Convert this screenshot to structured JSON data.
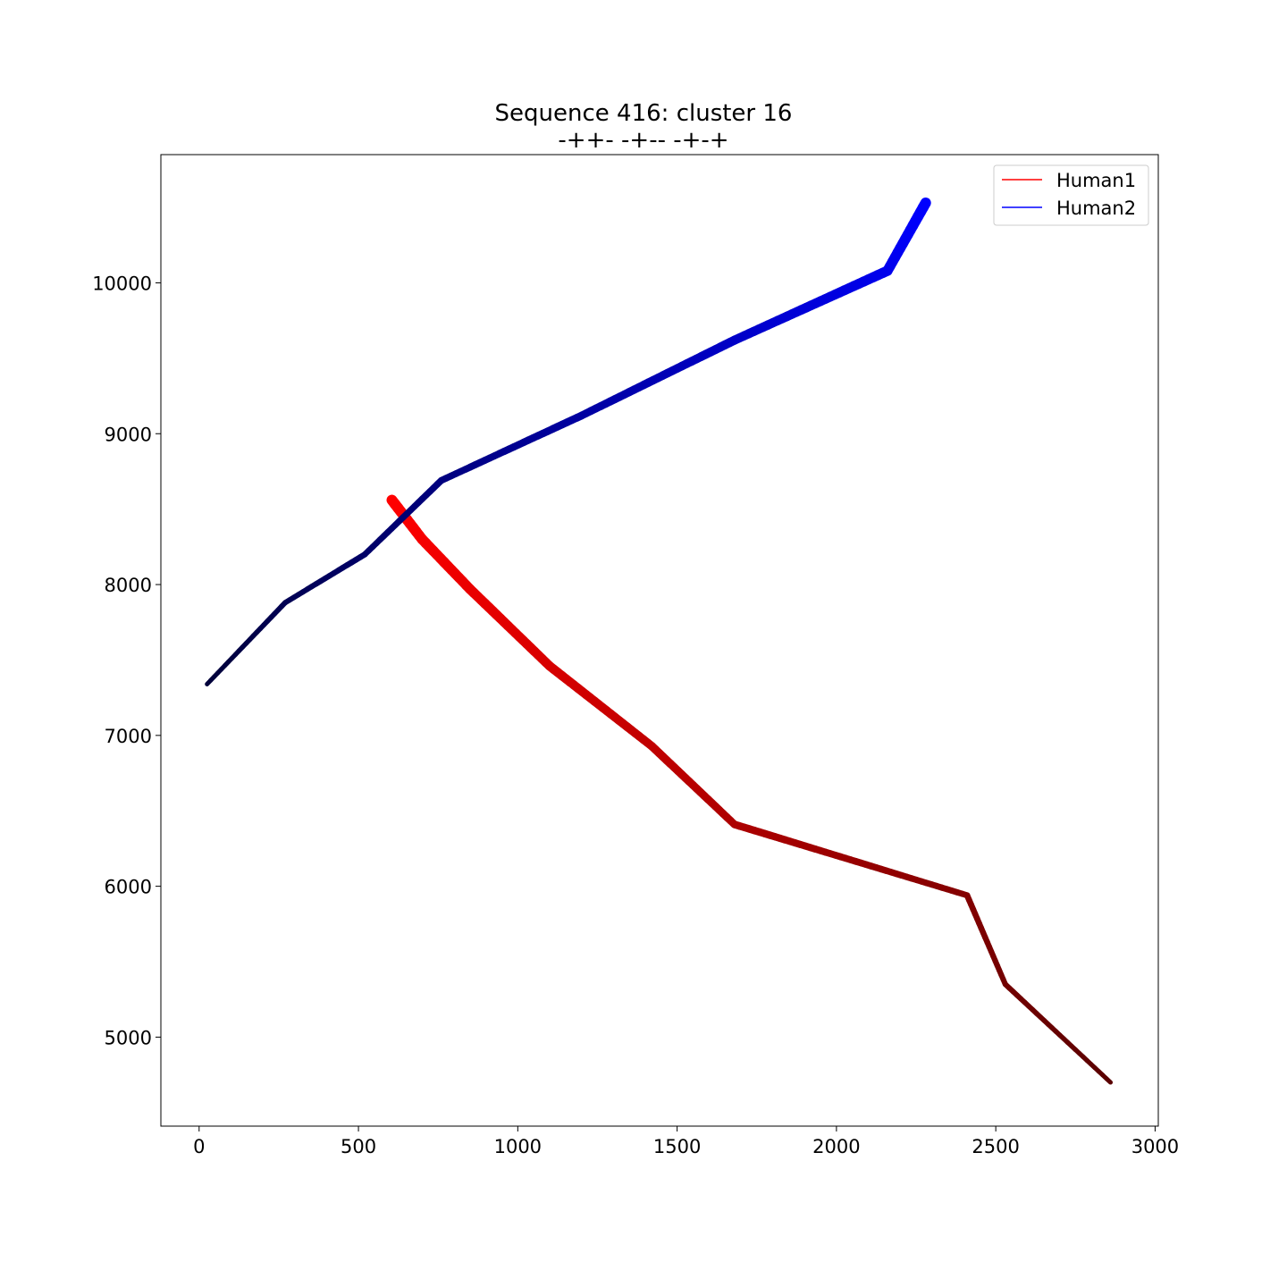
{
  "chart_data": {
    "type": "line",
    "title": "Sequence 416: cluster 16",
    "subtitle": "-++- -+-- -+-+",
    "xlabel": "",
    "ylabel": "",
    "xlim": [
      -120,
      3010
    ],
    "ylim": [
      4410,
      10850
    ],
    "xticks": [
      0,
      500,
      1000,
      1500,
      2000,
      2500,
      3000
    ],
    "xtick_labels": [
      "0",
      "500",
      "1000",
      "1500",
      "2000",
      "2500",
      "3000"
    ],
    "yticks": [
      5000,
      6000,
      7000,
      8000,
      9000,
      10000
    ],
    "ytick_labels": [
      "5000",
      "6000",
      "7000",
      "8000",
      "9000",
      "10000"
    ],
    "grid": false,
    "legend_position": "top-right",
    "series": [
      {
        "name": "Human1",
        "legend_color": "#ff0000",
        "color_start": "#ff0000",
        "color_end": "#5a0000",
        "points": [
          [
            605,
            8560
          ],
          [
            700,
            8300
          ],
          [
            850,
            7970
          ],
          [
            1100,
            7460
          ],
          [
            1420,
            6930
          ],
          [
            1680,
            6410
          ],
          [
            2410,
            5940
          ],
          [
            2530,
            5350
          ],
          [
            2860,
            4700
          ]
        ]
      },
      {
        "name": "Human2",
        "legend_color": "#0000ff",
        "color_start": "#0000ff",
        "color_end": "#00003a",
        "points": [
          [
            2280,
            10530
          ],
          [
            2160,
            10080
          ],
          [
            1680,
            9620
          ],
          [
            1200,
            9120
          ],
          [
            760,
            8690
          ],
          [
            520,
            8200
          ],
          [
            270,
            7880
          ],
          [
            25,
            7340
          ]
        ]
      }
    ]
  }
}
